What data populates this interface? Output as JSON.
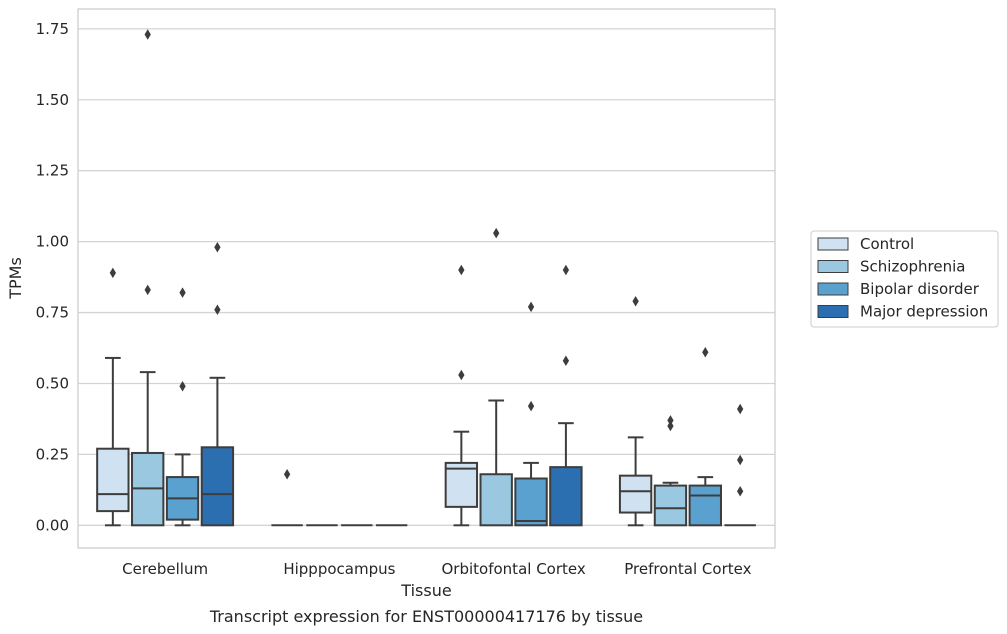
{
  "chart_data": {
    "type": "box",
    "title": "",
    "xlabel": "Tissue",
    "ylabel": "TPMs",
    "caption": "Transcript expression for ENST00000417176 by tissue",
    "ylim": [
      -0.08,
      1.82
    ],
    "yticks": [
      "0.00",
      "0.25",
      "0.50",
      "0.75",
      "1.00",
      "1.25",
      "1.50",
      "1.75"
    ],
    "ytick_values": [
      0,
      0.25,
      0.5,
      0.75,
      1.0,
      1.25,
      1.5,
      1.75
    ],
    "grid": "horizontal",
    "legend_position": "right",
    "categories": [
      "Cerebellum",
      "Hipppocampus",
      "Orbitofontal Cortex",
      "Prefrontal Cortex"
    ],
    "series": [
      {
        "name": "Control",
        "color": "#d0e1f2",
        "boxes": [
          {
            "q1": 0.05,
            "median": 0.11,
            "q3": 0.27,
            "whislo": 0.0,
            "whishi": 0.59,
            "fliers": [
              0.89
            ]
          },
          {
            "q1": 0.0,
            "median": 0.0,
            "q3": 0.0,
            "whislo": 0.0,
            "whishi": 0.0,
            "fliers": [
              0.18
            ]
          },
          {
            "q1": 0.065,
            "median": 0.2,
            "q3": 0.22,
            "whislo": 0.0,
            "whishi": 0.33,
            "fliers": [
              0.53,
              0.9
            ]
          },
          {
            "q1": 0.045,
            "median": 0.12,
            "q3": 0.175,
            "whislo": 0.0,
            "whishi": 0.31,
            "fliers": [
              0.79
            ]
          }
        ]
      },
      {
        "name": "Schizophrenia",
        "color": "#9ac8e0",
        "boxes": [
          {
            "q1": 0.0,
            "median": 0.13,
            "q3": 0.255,
            "whislo": 0.0,
            "whishi": 0.54,
            "fliers": [
              0.83,
              1.73
            ]
          },
          {
            "q1": 0.0,
            "median": 0.0,
            "q3": 0.0,
            "whislo": 0.0,
            "whishi": 0.0,
            "fliers": []
          },
          {
            "q1": 0.0,
            "median": 0.0,
            "q3": 0.18,
            "whislo": 0.0,
            "whishi": 0.44,
            "fliers": [
              1.03
            ]
          },
          {
            "q1": 0.0,
            "median": 0.06,
            "q3": 0.14,
            "whislo": 0.0,
            "whishi": 0.15,
            "fliers": [
              0.35,
              0.37
            ]
          }
        ]
      },
      {
        "name": "Bipolar disorder",
        "color": "#5aa1cf",
        "boxes": [
          {
            "q1": 0.02,
            "median": 0.095,
            "q3": 0.17,
            "whislo": 0.0,
            "whishi": 0.25,
            "fliers": [
              0.49,
              0.82
            ]
          },
          {
            "q1": 0.0,
            "median": 0.0,
            "q3": 0.0,
            "whislo": 0.0,
            "whishi": 0.0,
            "fliers": []
          },
          {
            "q1": 0.0,
            "median": 0.015,
            "q3": 0.165,
            "whislo": 0.0,
            "whishi": 0.22,
            "fliers": [
              0.42,
              0.77
            ]
          },
          {
            "q1": 0.0,
            "median": 0.105,
            "q3": 0.14,
            "whislo": 0.0,
            "whishi": 0.17,
            "fliers": [
              0.61
            ]
          }
        ]
      },
      {
        "name": "Major depression",
        "color": "#2b6fb0",
        "boxes": [
          {
            "q1": 0.0,
            "median": 0.11,
            "q3": 0.275,
            "whislo": 0.0,
            "whishi": 0.52,
            "fliers": [
              0.76,
              0.98
            ]
          },
          {
            "q1": 0.0,
            "median": 0.0,
            "q3": 0.0,
            "whislo": 0.0,
            "whishi": 0.0,
            "fliers": []
          },
          {
            "q1": 0.0,
            "median": 0.0,
            "q3": 0.205,
            "whislo": 0.0,
            "whishi": 0.36,
            "fliers": [
              0.58,
              0.9
            ]
          },
          {
            "q1": 0.0,
            "median": 0.0,
            "q3": 0.0,
            "whislo": 0.0,
            "whishi": 0.0,
            "fliers": [
              0.12,
              0.23,
              0.41
            ]
          }
        ]
      }
    ]
  }
}
